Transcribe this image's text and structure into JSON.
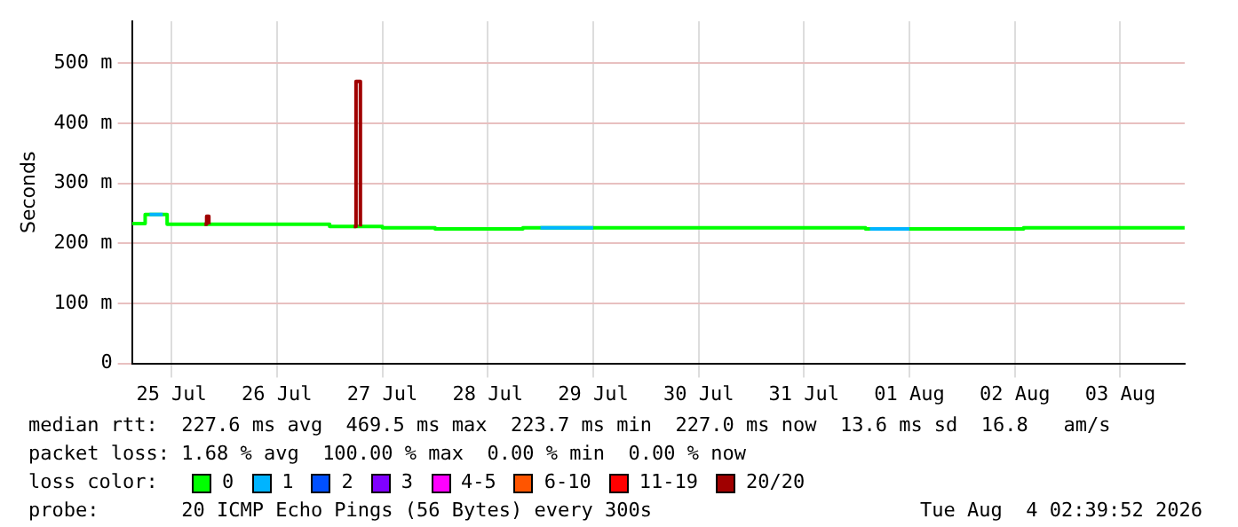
{
  "chart_data": {
    "type": "step",
    "ylabel": "Seconds",
    "xlim": [
      "2026-07-25T03:00",
      "2026-08-04T02:40"
    ],
    "xticks": [
      {
        "value": "2026-07-25T12:00",
        "label": "25 Jul"
      },
      {
        "value": "2026-07-26T12:00",
        "label": "26 Jul"
      },
      {
        "value": "2026-07-27T12:00",
        "label": "27 Jul"
      },
      {
        "value": "2026-07-28T12:00",
        "label": "28 Jul"
      },
      {
        "value": "2026-07-29T12:00",
        "label": "29 Jul"
      },
      {
        "value": "2026-07-30T12:00",
        "label": "30 Jul"
      },
      {
        "value": "2026-07-31T12:00",
        "label": "31 Jul"
      },
      {
        "value": "2026-08-01T12:00",
        "label": "01 Aug"
      },
      {
        "value": "2026-08-02T12:00",
        "label": "02 Aug"
      },
      {
        "value": "2026-08-03T12:00",
        "label": "03 Aug"
      }
    ],
    "ylim": [
      0,
      570
    ],
    "yticks": [
      0,
      {
        "value": 100,
        "label": "100 m"
      },
      {
        "value": 200,
        "label": "200 m"
      },
      {
        "value": 300,
        "label": "300 m"
      },
      {
        "value": 400,
        "label": "400 m"
      },
      {
        "value": 500,
        "label": "500 m"
      }
    ],
    "grid": true,
    "legend": "bottom",
    "legend_title": "loss color:",
    "series": [
      {
        "name": "0",
        "color": "#00ff00",
        "x": [
          "2026-07-25T03:00",
          "2026-07-25T06:00",
          "2026-07-25T11:00",
          "2026-07-27T00:00",
          "2026-07-27T12:00",
          "2026-07-28T00:00",
          "2026-07-28T20:00",
          "2026-08-01T02:00",
          "2026-08-02T14:00",
          "2026-08-04T02:39"
        ],
        "values": [
          233,
          248,
          232,
          228,
          226,
          224,
          226,
          224,
          226,
          226
        ]
      },
      {
        "name": "1",
        "color": "#00b4ff",
        "x": [
          "2026-07-25T07:00",
          "2026-07-25T10:00",
          "2026-07-26T00:00",
          "2026-07-29T00:00",
          "2026-07-29T12:00",
          "2026-07-31T00:00",
          "2026-08-01T03:00",
          "2026-08-01T12:00"
        ],
        "values": [
          248,
          248,
          null,
          226,
          226,
          null,
          224,
          224
        ]
      },
      {
        "name": "2",
        "color": "#0050ff"
      },
      {
        "name": "3",
        "color": "#8000ff"
      },
      {
        "name": "4-5",
        "color": "#ff00ff"
      },
      {
        "name": "6-10",
        "color": "#ff5500"
      },
      {
        "name": "11-19",
        "color": "#ff0000"
      },
      {
        "name": "20/20",
        "color": "#a00000",
        "x": [
          "2026-07-25T19:30",
          "2026-07-25T20:00",
          "2026-07-25T20:30",
          "2026-07-26T12:00",
          "2026-07-27T05:30",
          "2026-07-27T06:00",
          "2026-07-27T07:00"
        ],
        "values": [
          232,
          245,
          232,
          null,
          228,
          470,
          228
        ]
      }
    ],
    "annotations": [
      "median rtt:  227.6 ms avg  469.5 ms max  223.7 ms min  227.0 ms now  13.6 ms sd  16.8   am/s",
      "packet loss: 1.68 % avg  100.00 % max  0.00 % min  0.00 % now",
      "probe:       20 ICMP Echo Pings (56 Bytes) every 300s",
      "Tue Aug  4 02:39:52 2026"
    ]
  }
}
